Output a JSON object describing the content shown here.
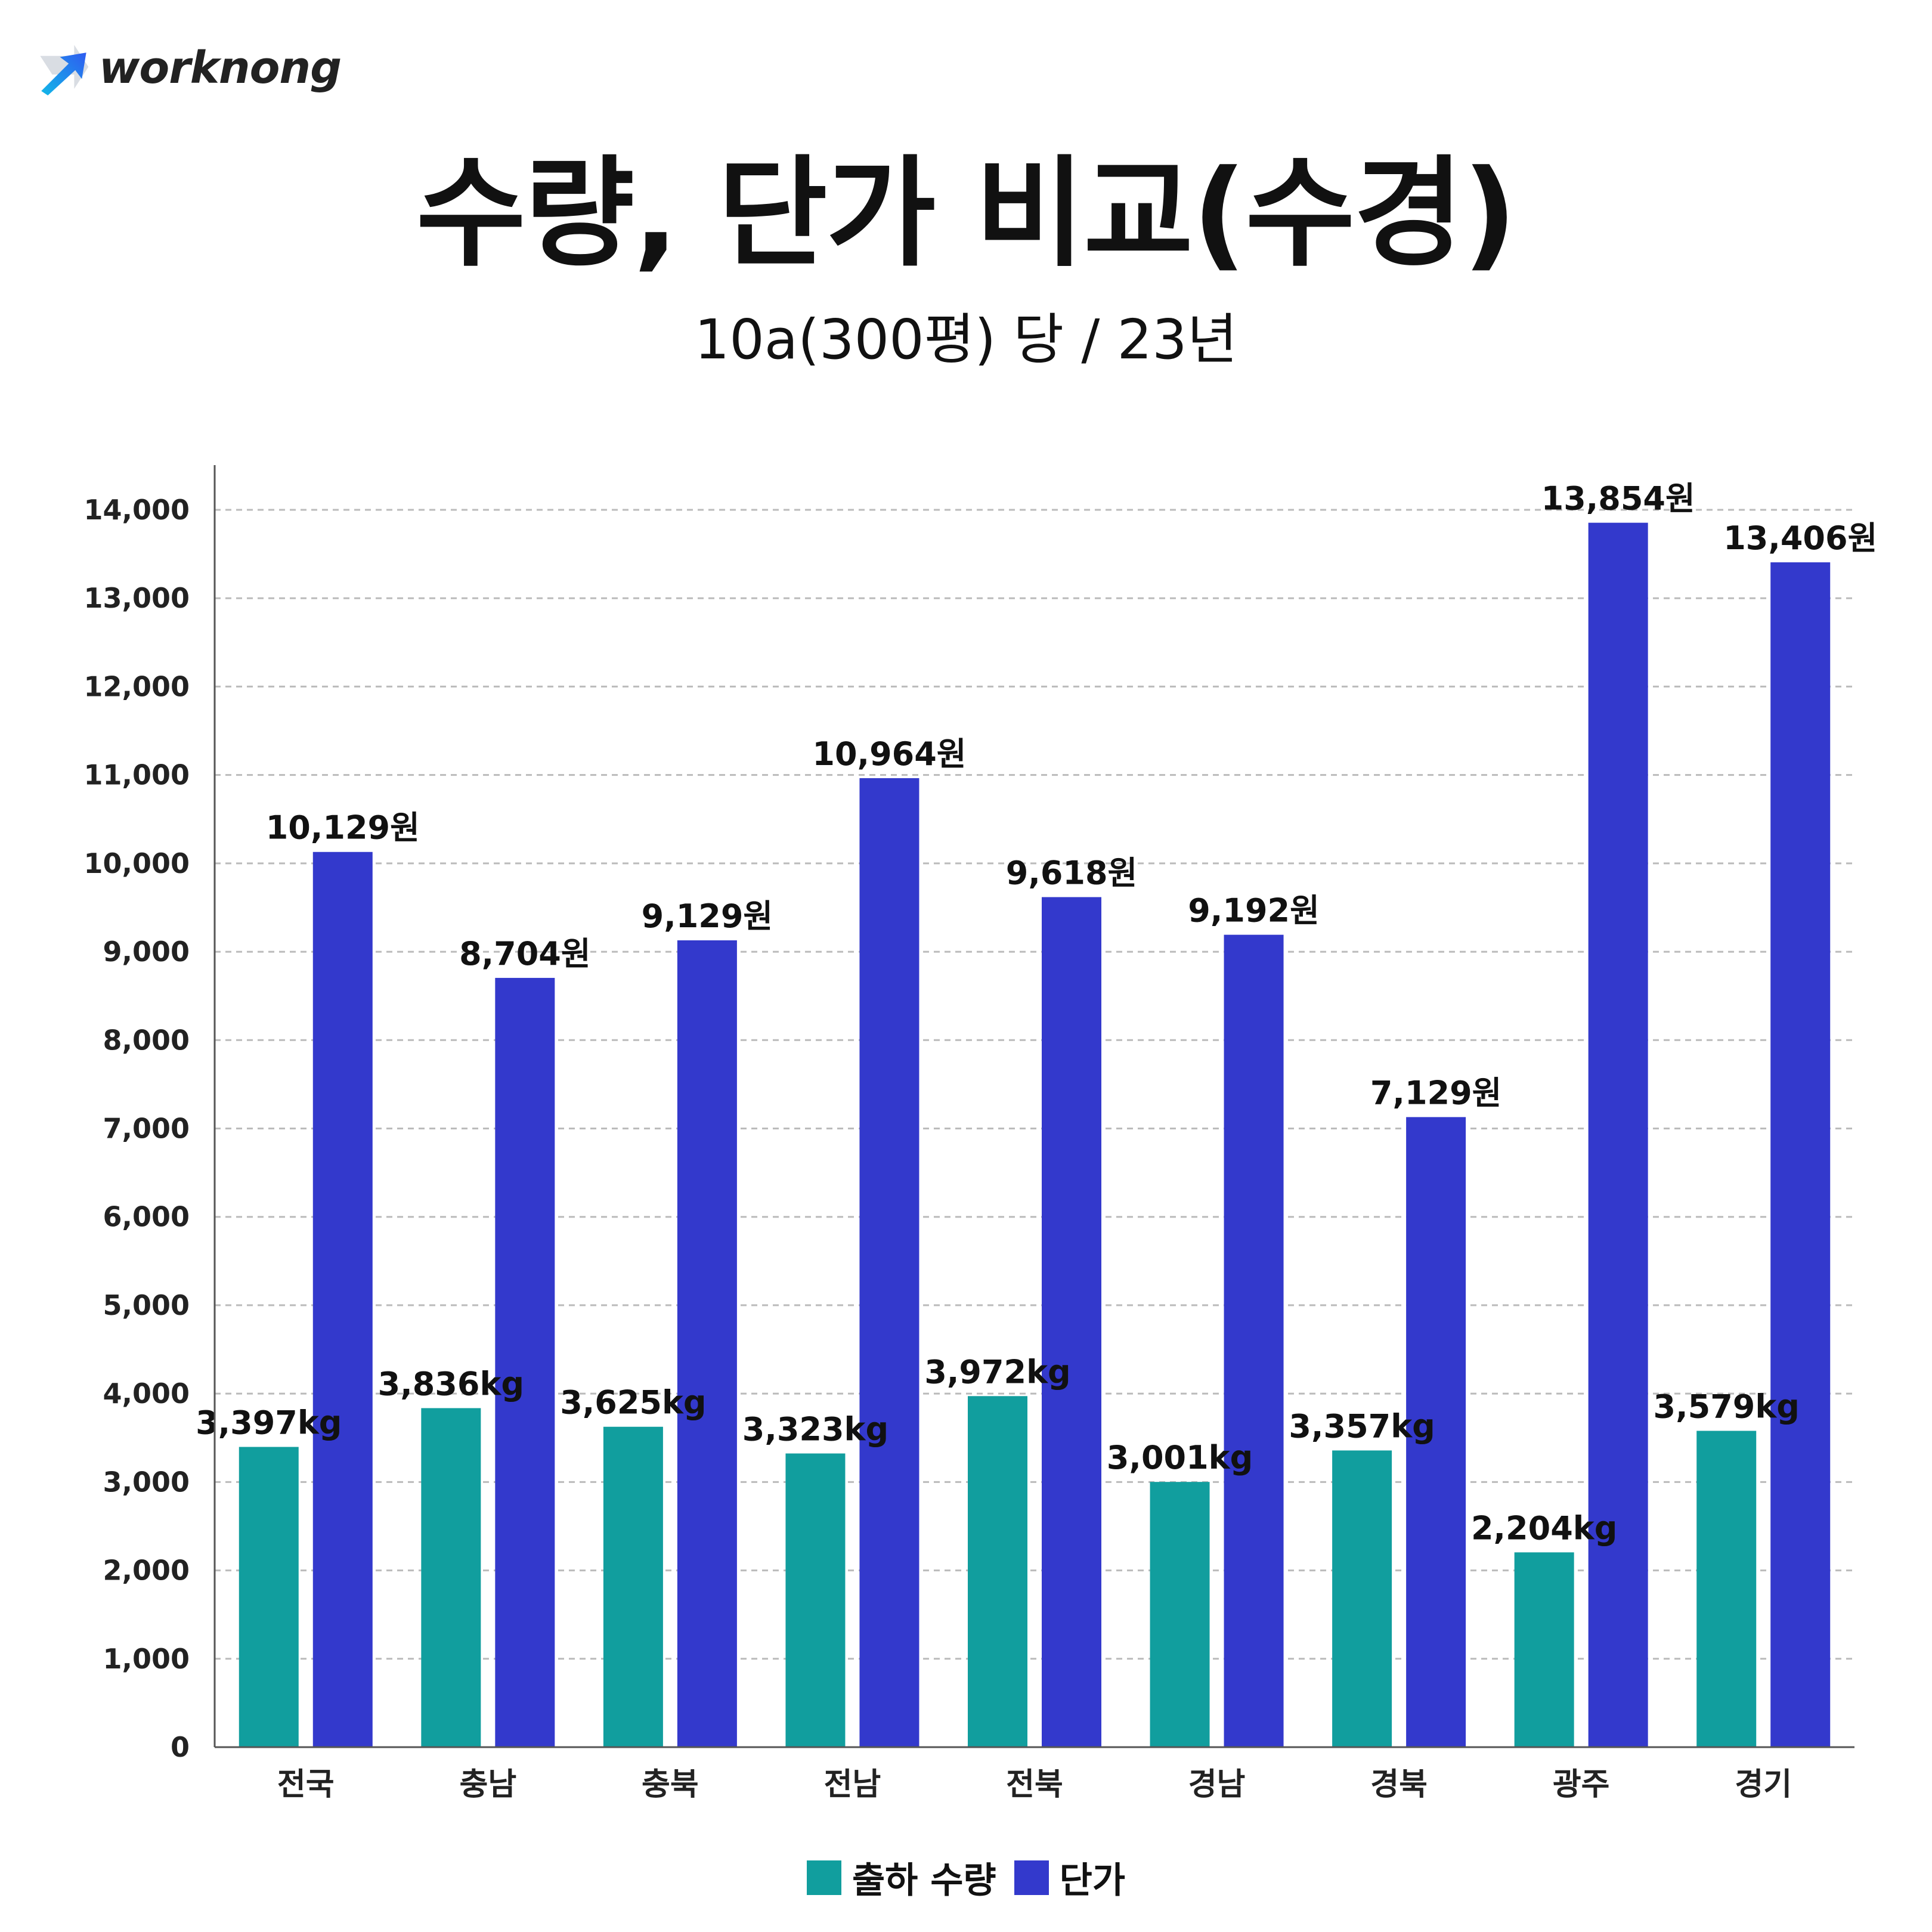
{
  "brand": {
    "logo_text": "worknong",
    "logo_icon": "arrow-up-right-icon"
  },
  "header": {
    "title": "수량, 단가 비교(수경)",
    "subtitle": "10a(300평) 당 / 23년"
  },
  "colors": {
    "quantity": "#119E9E",
    "price": "#3339CC",
    "grid": "#BBBBBB",
    "axis": "#555555"
  },
  "chart_data": {
    "type": "bar",
    "title": "수량, 단가 비교(수경)",
    "xlabel": "",
    "ylabel": "",
    "ylim": [
      0,
      14000
    ],
    "yticks": [
      0,
      1000,
      2000,
      3000,
      4000,
      5000,
      6000,
      7000,
      8000,
      9000,
      10000,
      11000,
      12000,
      13000,
      14000
    ],
    "ytick_labels": [
      "0",
      "1,000",
      "2,000",
      "3,000",
      "4,000",
      "5,000",
      "6,000",
      "7,000",
      "8,000",
      "9,000",
      "10,000",
      "11,000",
      "12,000",
      "13,000",
      "14,000"
    ],
    "grid": true,
    "legend_position": "bottom-center",
    "categories": [
      "전국",
      "충남",
      "충북",
      "전남",
      "전북",
      "경남",
      "경북",
      "광주",
      "경기"
    ],
    "series": [
      {
        "name": "출하 수량",
        "values": [
          3397,
          3836,
          3625,
          3323,
          3972,
          3001,
          3357,
          2204,
          3579
        ],
        "labels": [
          "3,397kg",
          "3,836kg",
          "3,625kg",
          "3,323kg",
          "3,972kg",
          "3,001kg",
          "3,357kg",
          "2,204kg",
          "3,579kg"
        ]
      },
      {
        "name": "단가",
        "values": [
          10129,
          8704,
          9129,
          10964,
          9618,
          9192,
          7129,
          13854,
          13406
        ],
        "labels": [
          "10,129원",
          "8,704원",
          "9,129원",
          "10,964원",
          "9,618원",
          "9,192원",
          "7,129원",
          "13,854원",
          "13,406원"
        ]
      }
    ]
  }
}
